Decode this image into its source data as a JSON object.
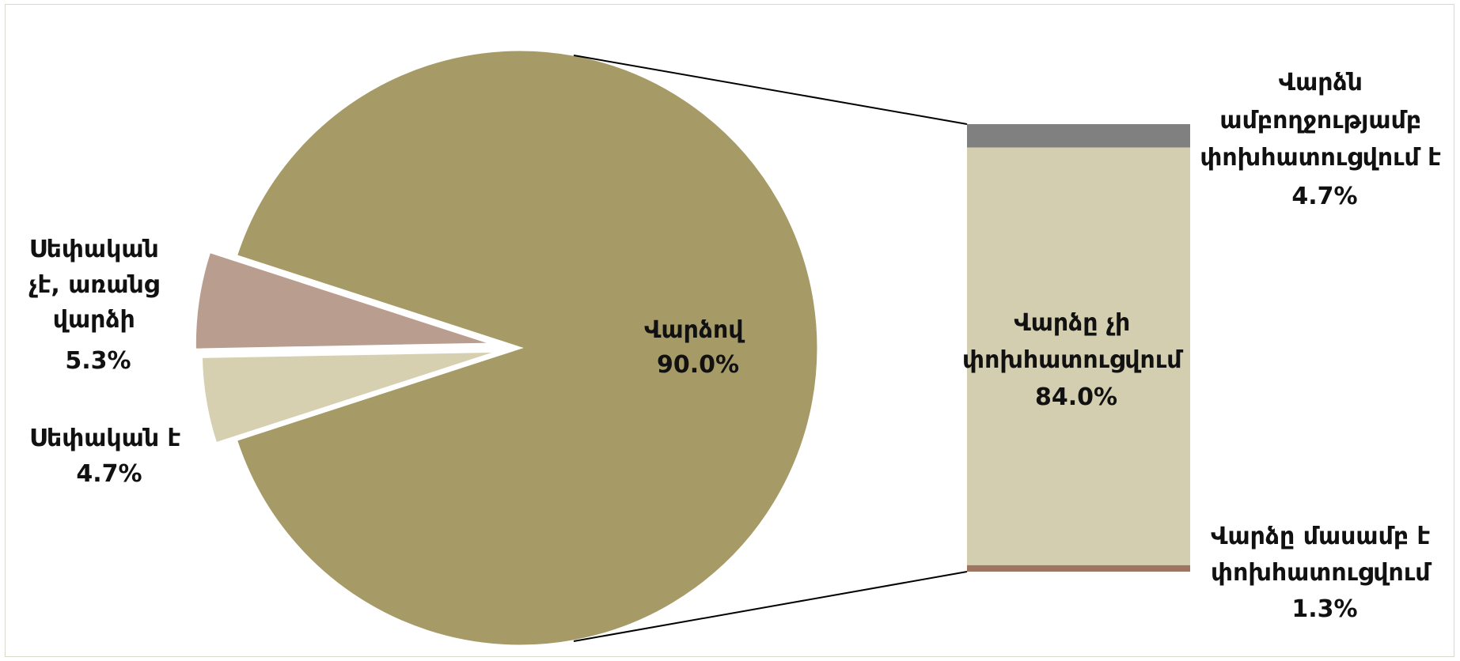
{
  "chart_data": {
    "type": "pie",
    "subtype": "bar-of-pie",
    "title": "",
    "pie": {
      "slices": [
        {
          "label_lines": [
            "Վարձով"
          ],
          "value_text": "90.0%",
          "value": 90.0,
          "color": "#a69b66"
        },
        {
          "label_lines": [
            "Սեփական"
          ],
          "label_tail": "է",
          "value_text": "4.7%",
          "value": 4.7,
          "color": "#d6d0b0"
        },
        {
          "label_lines": [
            "Սեփական",
            "չէ, առանց",
            "վարձի"
          ],
          "value_text": "5.3%",
          "value": 5.3,
          "color": "#b99d8e"
        }
      ]
    },
    "bar": {
      "segments": [
        {
          "label_lines": [
            "Վարձն",
            "ամբողջությամբ",
            "փոխհատուցվում է"
          ],
          "value_text": "4.7%",
          "value": 4.7,
          "color": "#808080"
        },
        {
          "label_lines": [
            "Վարձը չի",
            "փոխհատուցվում"
          ],
          "value_text": "84.0%",
          "value": 84.0,
          "color": "#d3ceb0"
        },
        {
          "label_lines": [
            "Վարձը մասամբ է",
            "փոխհատուցվում"
          ],
          "value_text": "1.3%",
          "value": 1.3,
          "color": "#9e7560"
        }
      ]
    },
    "legend": "none",
    "connector_color": "#000000"
  }
}
